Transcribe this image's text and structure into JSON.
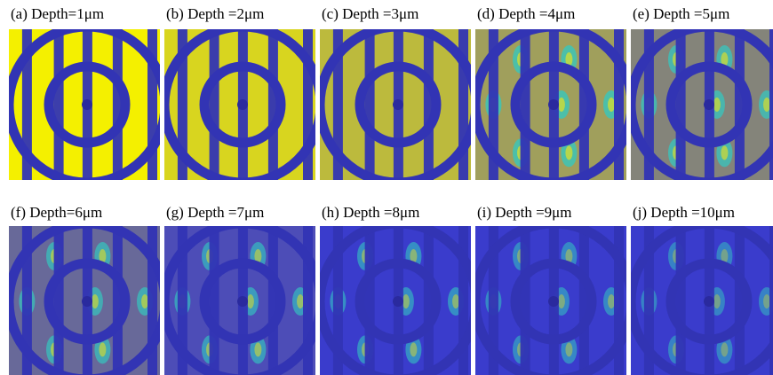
{
  "panels": [
    {
      "label": "(a) Depth=1μm"
    },
    {
      "label": "(b) Depth =2μm"
    },
    {
      "label": "(c) Depth =3μm"
    },
    {
      "label": "(d) Depth =4μm"
    },
    {
      "label": "(e) Depth =5μm"
    },
    {
      "label": "(f) Depth=6μm"
    },
    {
      "label": "(g) Depth =7μm"
    },
    {
      "label": "(h) Depth =8μm"
    },
    {
      "label": "(i) Depth =9μm"
    },
    {
      "label": "(j) Depth =10μm"
    }
  ]
}
